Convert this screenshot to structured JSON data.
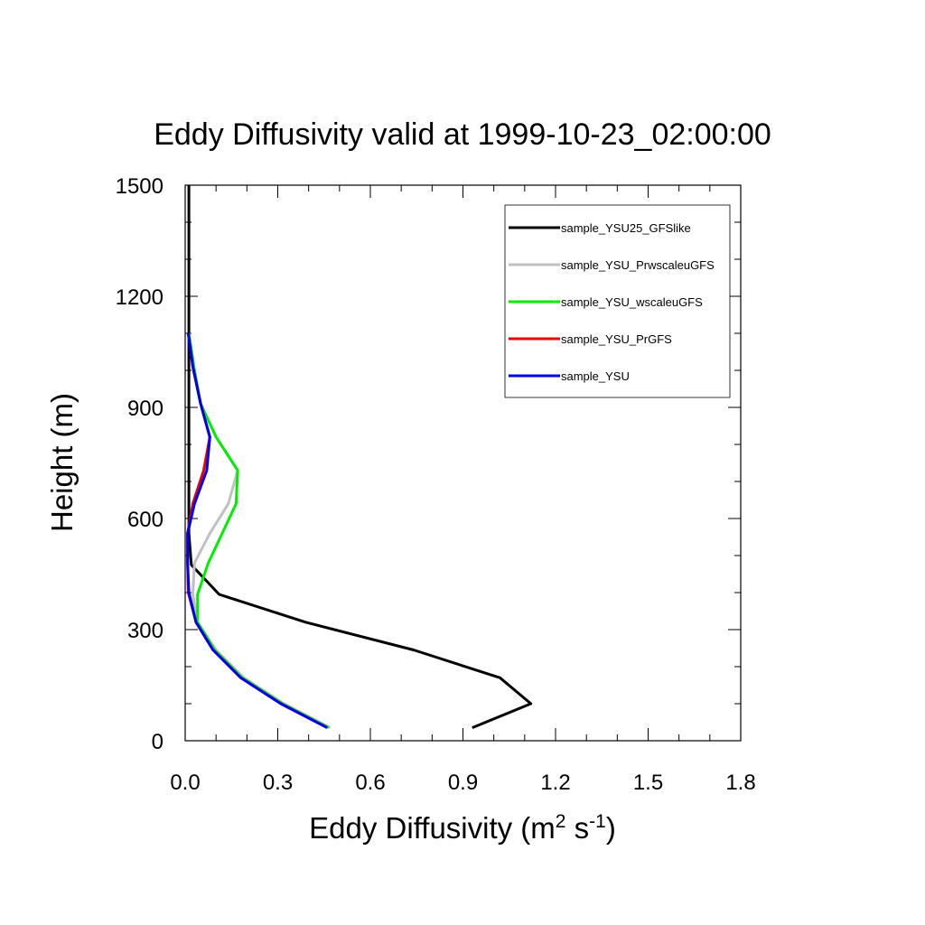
{
  "chart_data": {
    "type": "line",
    "title": "Eddy Diffusivity valid at 1999-10-23_02:00:00",
    "xlabel": {
      "base": "Eddy Diffusivity (m",
      "sup1": "2",
      "mid": " s",
      "sup2": "-1",
      "end": ")"
    },
    "ylabel": "Height (m)",
    "xlim": [
      0,
      1.8
    ],
    "ylim": [
      0,
      1500
    ],
    "xticks": [
      0,
      0.3,
      0.6,
      0.9,
      1.2,
      1.5,
      1.8
    ],
    "xtick_labels": [
      "0.0",
      "0.3",
      "0.6",
      "0.9",
      "1.2",
      "1.5",
      "1.8"
    ],
    "yticks": [
      0,
      300,
      600,
      900,
      1200,
      1500
    ],
    "ytick_labels": [
      "0",
      "300",
      "600",
      "900",
      "1200",
      "1500"
    ],
    "legend_position": "top-right",
    "series": [
      {
        "name": "sample_YSU25_GFSlike",
        "color": "#000000",
        "points": [
          [
            0.93,
            35
          ],
          [
            1.12,
            100
          ],
          [
            1.02,
            170
          ],
          [
            0.74,
            245
          ],
          [
            0.39,
            320
          ],
          [
            0.11,
            395
          ],
          [
            0.02,
            475
          ],
          [
            0.012,
            560
          ],
          [
            0.012,
            700
          ],
          [
            0.012,
            900
          ],
          [
            0.012,
            1200
          ],
          [
            0.012,
            1500
          ]
        ]
      },
      {
        "name": "sample_YSU_PrwscaleuGFS",
        "color": "#c0c0c0",
        "points": [
          [
            0.47,
            35
          ],
          [
            0.32,
            100
          ],
          [
            0.19,
            170
          ],
          [
            0.1,
            245
          ],
          [
            0.04,
            320
          ],
          [
            0.025,
            395
          ],
          [
            0.03,
            480
          ],
          [
            0.08,
            560
          ],
          [
            0.14,
            640
          ],
          [
            0.17,
            730
          ],
          [
            0.1,
            820
          ],
          [
            0.05,
            910
          ],
          [
            0.03,
            1000
          ],
          [
            0.012,
            1100
          ]
        ]
      },
      {
        "name": "sample_YSU_wscaleuGFS",
        "color": "#00ee00",
        "points": [
          [
            0.465,
            35
          ],
          [
            0.315,
            100
          ],
          [
            0.185,
            170
          ],
          [
            0.095,
            245
          ],
          [
            0.04,
            320
          ],
          [
            0.04,
            395
          ],
          [
            0.075,
            480
          ],
          [
            0.12,
            560
          ],
          [
            0.165,
            640
          ],
          [
            0.17,
            730
          ],
          [
            0.1,
            820
          ],
          [
            0.05,
            910
          ],
          [
            0.03,
            1000
          ],
          [
            0.012,
            1100
          ]
        ]
      },
      {
        "name": "sample_YSU_PrGFS",
        "color": "#ee0000",
        "points": [
          [
            0.46,
            35
          ],
          [
            0.31,
            100
          ],
          [
            0.18,
            170
          ],
          [
            0.09,
            245
          ],
          [
            0.035,
            320
          ],
          [
            0.01,
            400
          ],
          [
            0.008,
            480
          ],
          [
            0.008,
            560
          ],
          [
            0.025,
            640
          ],
          [
            0.06,
            730
          ],
          [
            0.08,
            820
          ],
          [
            0.05,
            910
          ],
          [
            0.025,
            1010
          ],
          [
            0.01,
            1100
          ]
        ]
      },
      {
        "name": "sample_YSU",
        "color": "#0000ee",
        "points": [
          [
            0.46,
            35
          ],
          [
            0.31,
            100
          ],
          [
            0.18,
            170
          ],
          [
            0.09,
            245
          ],
          [
            0.035,
            320
          ],
          [
            0.012,
            400
          ],
          [
            0.008,
            480
          ],
          [
            0.008,
            560
          ],
          [
            0.03,
            640
          ],
          [
            0.07,
            730
          ],
          [
            0.08,
            820
          ],
          [
            0.05,
            910
          ],
          [
            0.025,
            1010
          ],
          [
            0.01,
            1100
          ]
        ]
      }
    ]
  }
}
